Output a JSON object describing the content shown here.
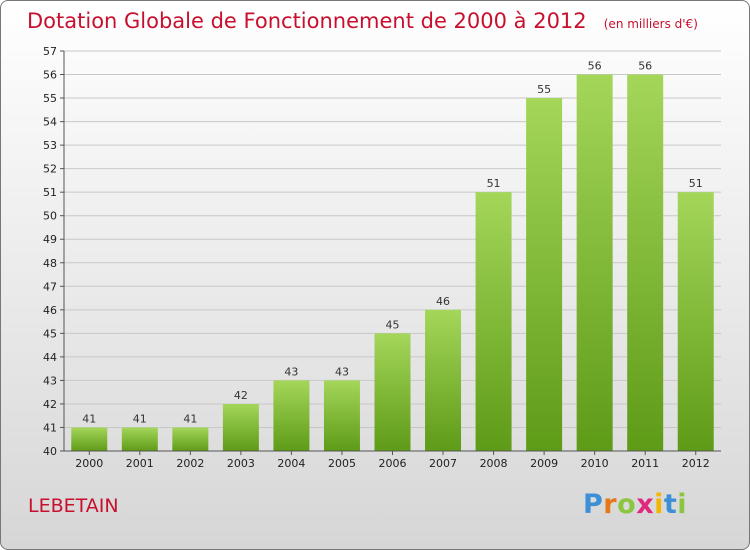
{
  "title": {
    "main": "Dotation Globale de Fonctionnement de 2000 à 2012",
    "unit": "(en milliers d'€)"
  },
  "commune": "LEBETAIN",
  "logo": {
    "letters": [
      "P",
      "r",
      "o",
      "x",
      "i",
      "t",
      "i"
    ],
    "colors": [
      "#3d8fd6",
      "#e67817",
      "#8cc63f",
      "#e0287d",
      "#f2b705",
      "#3d8fd6",
      "#8cc63f"
    ]
  },
  "colors": {
    "title": "#c8102e",
    "bar_top": "#a4d65a",
    "bar_bottom": "#5e9b17",
    "grid": "#c8c8c8"
  },
  "chart_data": {
    "type": "bar",
    "categories": [
      "2000",
      "2001",
      "2002",
      "2003",
      "2004",
      "2005",
      "2006",
      "2007",
      "2008",
      "2009",
      "2010",
      "2011",
      "2012"
    ],
    "values": [
      41,
      41,
      41,
      42,
      43,
      43,
      45,
      46,
      51,
      55,
      56,
      56,
      51
    ],
    "title": "Dotation Globale de Fonctionnement de 2000 à 2012",
    "xlabel": "",
    "ylabel": "",
    "ylim": [
      40,
      57
    ],
    "yticks": [
      40,
      41,
      42,
      43,
      44,
      45,
      46,
      47,
      48,
      49,
      50,
      51,
      52,
      53,
      54,
      55,
      56,
      57
    ],
    "grid": true,
    "data_labels": true
  }
}
